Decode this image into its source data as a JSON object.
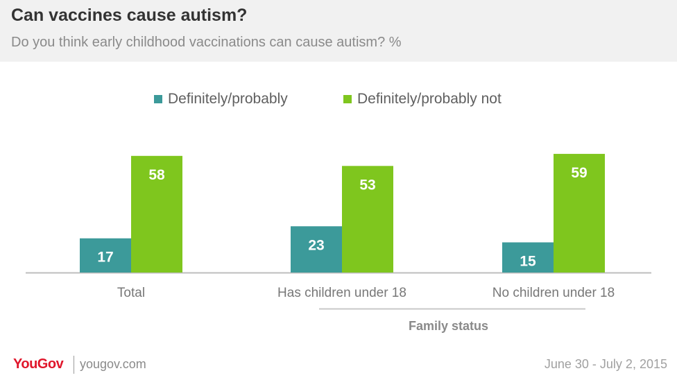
{
  "header": {
    "title": "Can vaccines cause autism?",
    "subtitle": "Do you think early childhood vaccinations can cause autism? %"
  },
  "footer": {
    "logo": "YouGov",
    "url": "yougov.com",
    "date": "June 30 - July 2, 2015"
  },
  "colors": {
    "series1": "#3c9a9a",
    "series2": "#7fc61e",
    "axis": "#bdbdbd",
    "group_line": "#c8c8c8"
  },
  "chart_data": {
    "type": "bar",
    "title": "Can vaccines cause autism?",
    "subtitle": "Do you think early childhood vaccinations can cause autism? %",
    "categories": [
      "Total",
      "Has children under 18",
      "No children under 18"
    ],
    "series": [
      {
        "name": "Definitely/probably",
        "values": [
          17,
          23,
          15
        ]
      },
      {
        "name": "Definitely/probably not",
        "values": [
          58,
          53,
          59
        ]
      }
    ],
    "group_label": "Family status",
    "grouped_categories": [
      1,
      2
    ],
    "ylim": [
      0,
      60
    ],
    "legend_position": "top",
    "grid": false,
    "data_labels": true
  }
}
